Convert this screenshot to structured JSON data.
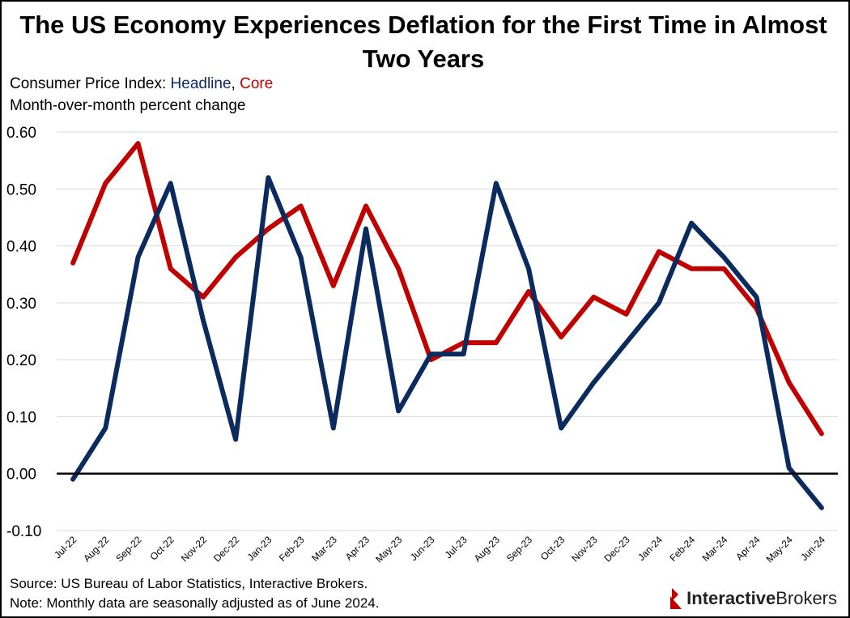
{
  "title": "The US Economy Experiences Deflation for the First Time in Almost Two Years",
  "subtitle": {
    "prefix": "Consumer Price Index: ",
    "headline_word": "Headline",
    "separator": ", ",
    "core_word": "Core",
    "line2": "Month-over-month percent change"
  },
  "source": "Source: US Bureau of Labor Statistics, Interactive Brokers.",
  "note": "Note: Monthly data are seasonally adjusted as of June 2024.",
  "logo": {
    "part1": "Interactive",
    "part2": "Brokers"
  },
  "colors": {
    "headline": "#0b2b5e",
    "core": "#c00000",
    "grid": "#d9d9d9",
    "zero": "#000000"
  },
  "chart_data": {
    "type": "line",
    "title": "The US Economy Experiences Deflation for the First Time in Almost Two Years",
    "xlabel": "",
    "ylabel": "Month-over-month percent change",
    "ylim": [
      -0.1,
      0.6
    ],
    "yticks": [
      "0.60",
      "0.50",
      "0.40",
      "0.30",
      "0.20",
      "0.10",
      "0.00",
      "-0.10"
    ],
    "ytick_values": [
      0.6,
      0.5,
      0.4,
      0.3,
      0.2,
      0.1,
      0.0,
      -0.1
    ],
    "grid": true,
    "categories": [
      "Jul-22",
      "Aug-22",
      "Sep-22",
      "Oct-22",
      "Nov-22",
      "Dec-22",
      "Jan-23",
      "Feb-23",
      "Mar-23",
      "Apr-23",
      "May-23",
      "Jun-23",
      "Jul-23",
      "Aug-23",
      "Sep-23",
      "Oct-23",
      "Nov-23",
      "Dec-23",
      "Jan-24",
      "Feb-24",
      "Mar-24",
      "Apr-24",
      "May-24",
      "Jun-24"
    ],
    "series": [
      {
        "name": "Headline",
        "values": [
          -0.01,
          0.08,
          0.38,
          0.51,
          0.27,
          0.06,
          0.52,
          0.38,
          0.08,
          0.43,
          0.11,
          0.21,
          0.21,
          0.51,
          0.36,
          0.08,
          0.16,
          0.23,
          0.3,
          0.44,
          0.38,
          0.31,
          0.01,
          -0.06
        ]
      },
      {
        "name": "Core",
        "values": [
          0.37,
          0.51,
          0.58,
          0.36,
          0.31,
          0.38,
          0.43,
          0.47,
          0.33,
          0.47,
          0.36,
          0.2,
          0.23,
          0.23,
          0.32,
          0.24,
          0.31,
          0.28,
          0.39,
          0.36,
          0.36,
          0.29,
          0.16,
          0.07
        ]
      }
    ]
  }
}
